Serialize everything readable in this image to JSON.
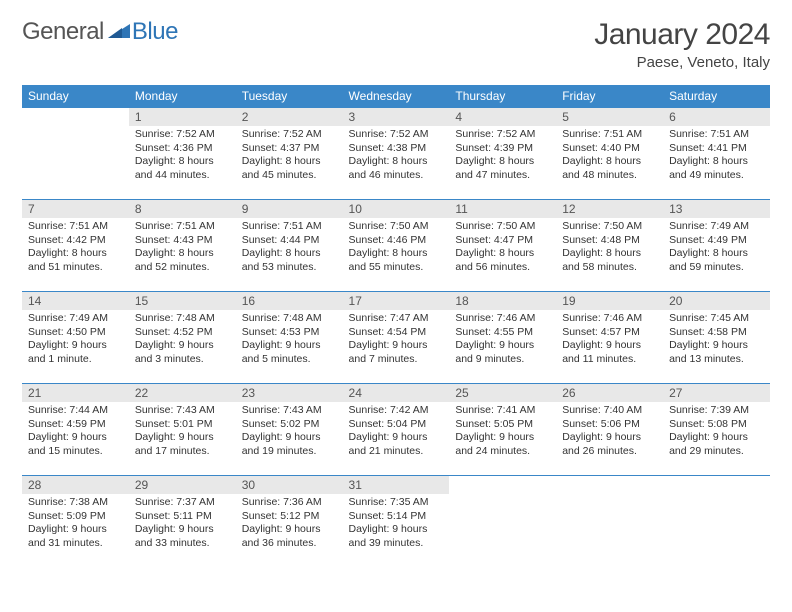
{
  "logo": {
    "text1": "General",
    "text2": "Blue"
  },
  "title": "January 2024",
  "location": "Paese, Veneto, Italy",
  "colors": {
    "header_bg": "#3a87c8",
    "header_text": "#ffffff",
    "daynum_bg": "#e8e8e8",
    "border": "#3a87c8",
    "logo_blue": "#2e75b6"
  },
  "day_headers": [
    "Sunday",
    "Monday",
    "Tuesday",
    "Wednesday",
    "Thursday",
    "Friday",
    "Saturday"
  ],
  "start_weekday": 1,
  "days": [
    {
      "n": 1,
      "sunrise": "7:52 AM",
      "sunset": "4:36 PM",
      "daylight": "8 hours and 44 minutes."
    },
    {
      "n": 2,
      "sunrise": "7:52 AM",
      "sunset": "4:37 PM",
      "daylight": "8 hours and 45 minutes."
    },
    {
      "n": 3,
      "sunrise": "7:52 AM",
      "sunset": "4:38 PM",
      "daylight": "8 hours and 46 minutes."
    },
    {
      "n": 4,
      "sunrise": "7:52 AM",
      "sunset": "4:39 PM",
      "daylight": "8 hours and 47 minutes."
    },
    {
      "n": 5,
      "sunrise": "7:51 AM",
      "sunset": "4:40 PM",
      "daylight": "8 hours and 48 minutes."
    },
    {
      "n": 6,
      "sunrise": "7:51 AM",
      "sunset": "4:41 PM",
      "daylight": "8 hours and 49 minutes."
    },
    {
      "n": 7,
      "sunrise": "7:51 AM",
      "sunset": "4:42 PM",
      "daylight": "8 hours and 51 minutes."
    },
    {
      "n": 8,
      "sunrise": "7:51 AM",
      "sunset": "4:43 PM",
      "daylight": "8 hours and 52 minutes."
    },
    {
      "n": 9,
      "sunrise": "7:51 AM",
      "sunset": "4:44 PM",
      "daylight": "8 hours and 53 minutes."
    },
    {
      "n": 10,
      "sunrise": "7:50 AM",
      "sunset": "4:46 PM",
      "daylight": "8 hours and 55 minutes."
    },
    {
      "n": 11,
      "sunrise": "7:50 AM",
      "sunset": "4:47 PM",
      "daylight": "8 hours and 56 minutes."
    },
    {
      "n": 12,
      "sunrise": "7:50 AM",
      "sunset": "4:48 PM",
      "daylight": "8 hours and 58 minutes."
    },
    {
      "n": 13,
      "sunrise": "7:49 AM",
      "sunset": "4:49 PM",
      "daylight": "8 hours and 59 minutes."
    },
    {
      "n": 14,
      "sunrise": "7:49 AM",
      "sunset": "4:50 PM",
      "daylight": "9 hours and 1 minute."
    },
    {
      "n": 15,
      "sunrise": "7:48 AM",
      "sunset": "4:52 PM",
      "daylight": "9 hours and 3 minutes."
    },
    {
      "n": 16,
      "sunrise": "7:48 AM",
      "sunset": "4:53 PM",
      "daylight": "9 hours and 5 minutes."
    },
    {
      "n": 17,
      "sunrise": "7:47 AM",
      "sunset": "4:54 PM",
      "daylight": "9 hours and 7 minutes."
    },
    {
      "n": 18,
      "sunrise": "7:46 AM",
      "sunset": "4:55 PM",
      "daylight": "9 hours and 9 minutes."
    },
    {
      "n": 19,
      "sunrise": "7:46 AM",
      "sunset": "4:57 PM",
      "daylight": "9 hours and 11 minutes."
    },
    {
      "n": 20,
      "sunrise": "7:45 AM",
      "sunset": "4:58 PM",
      "daylight": "9 hours and 13 minutes."
    },
    {
      "n": 21,
      "sunrise": "7:44 AM",
      "sunset": "4:59 PM",
      "daylight": "9 hours and 15 minutes."
    },
    {
      "n": 22,
      "sunrise": "7:43 AM",
      "sunset": "5:01 PM",
      "daylight": "9 hours and 17 minutes."
    },
    {
      "n": 23,
      "sunrise": "7:43 AM",
      "sunset": "5:02 PM",
      "daylight": "9 hours and 19 minutes."
    },
    {
      "n": 24,
      "sunrise": "7:42 AM",
      "sunset": "5:04 PM",
      "daylight": "9 hours and 21 minutes."
    },
    {
      "n": 25,
      "sunrise": "7:41 AM",
      "sunset": "5:05 PM",
      "daylight": "9 hours and 24 minutes."
    },
    {
      "n": 26,
      "sunrise": "7:40 AM",
      "sunset": "5:06 PM",
      "daylight": "9 hours and 26 minutes."
    },
    {
      "n": 27,
      "sunrise": "7:39 AM",
      "sunset": "5:08 PM",
      "daylight": "9 hours and 29 minutes."
    },
    {
      "n": 28,
      "sunrise": "7:38 AM",
      "sunset": "5:09 PM",
      "daylight": "9 hours and 31 minutes."
    },
    {
      "n": 29,
      "sunrise": "7:37 AM",
      "sunset": "5:11 PM",
      "daylight": "9 hours and 33 minutes."
    },
    {
      "n": 30,
      "sunrise": "7:36 AM",
      "sunset": "5:12 PM",
      "daylight": "9 hours and 36 minutes."
    },
    {
      "n": 31,
      "sunrise": "7:35 AM",
      "sunset": "5:14 PM",
      "daylight": "9 hours and 39 minutes."
    }
  ],
  "labels": {
    "sunrise": "Sunrise:",
    "sunset": "Sunset:",
    "daylight": "Daylight:"
  }
}
